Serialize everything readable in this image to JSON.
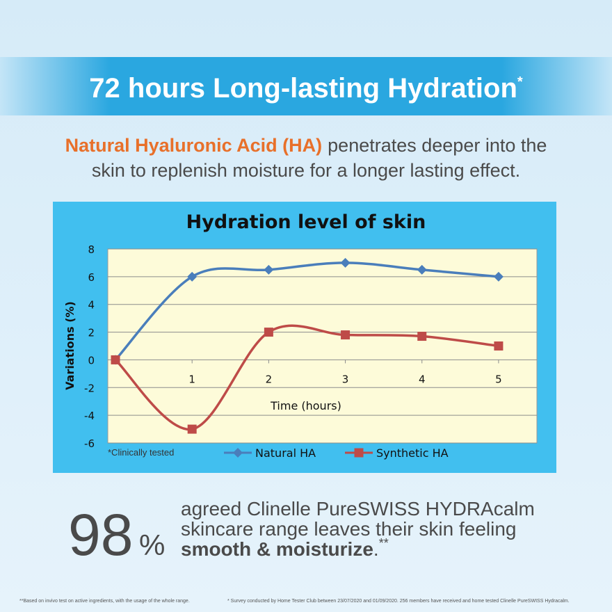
{
  "banner": {
    "title": "72 hours Long-lasting Hydration",
    "mark": "*"
  },
  "subtitle": {
    "highlight": "Natural Hyaluronic Acid (HA)",
    "line1": "penetrates deeper into the",
    "line2": "skin to replenish moisture for a longer lasting effect."
  },
  "chart_data": {
    "type": "line",
    "title": "Hydration level of skin",
    "y_label": "Variations (%)",
    "x_label": "Time (hours)",
    "note": "*Clinically tested",
    "x": [
      0,
      1,
      2,
      3,
      4,
      5
    ],
    "series": [
      {
        "name": "Natural HA",
        "color": "#4a7ebb",
        "marker": "diamond",
        "values": [
          0,
          6,
          6.5,
          7,
          6.5,
          6
        ]
      },
      {
        "name": "Synthetic HA",
        "color": "#be4b48",
        "marker": "square",
        "values": [
          0,
          -5,
          2,
          1.8,
          1.7,
          1
        ]
      }
    ],
    "xlim": [
      -0.1,
      5.5
    ],
    "xticks": [
      1,
      2,
      3,
      4,
      5
    ],
    "ylim": [
      -6,
      8
    ],
    "yticks": [
      -6,
      -4,
      -2,
      0,
      2,
      4,
      6,
      8
    ],
    "grid": true,
    "smooth": true,
    "legend": "bottom"
  },
  "stat": {
    "number": "98",
    "unit": "%",
    "lines": [
      "agreed Clinelle PureSWISS HYDRAcalm",
      "skincare range leaves their skin feeling"
    ],
    "bold": "smooth & moisturize",
    "period": ".",
    "mark": "**"
  },
  "footnotes": [
    "**Based on invivo test on active ingredients, with the usage of the whole range.",
    "* Survey conducted by Home Tester Club between 23/07/2020 and 01/09/2020. 256 members have received and home tested Clinelle PureSWISS Hydracalm."
  ]
}
